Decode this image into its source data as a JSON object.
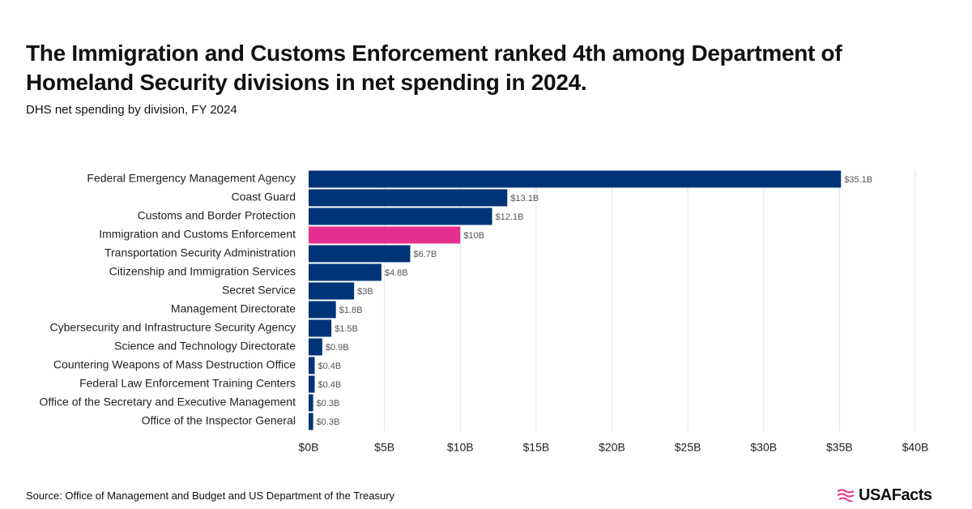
{
  "chart_data": {
    "type": "barh",
    "title": "The Immigration and Customs Enforcement ranked 4th among Department of Homeland Security divisions in net spending in 2024.",
    "subtitle": "DHS net spending by division, FY 2024",
    "source": "Source: Office of Management and Budget and US Department of the Treasury",
    "brand": "USAFacts",
    "categories": [
      "Federal Emergency Management Agency",
      "Coast Guard",
      "Customs and Border Protection",
      "Immigration and Customs Enforcement",
      "Transportation Security Administration",
      "Citizenship and Immigration Services",
      "Secret Service",
      "Management Directorate",
      "Cybersecurity and Infrastructure Security Agency",
      "Science and Technology Directorate",
      "Countering Weapons of Mass Destruction Office",
      "Federal Law Enforcement Training Centers",
      "Office of the Secretary and Executive Management",
      "Office of the Inspector General"
    ],
    "values": [
      35.1,
      13.1,
      12.1,
      10,
      6.7,
      4.8,
      3,
      1.8,
      1.5,
      0.9,
      0.4,
      0.4,
      0.3,
      0.3
    ],
    "value_labels": [
      "$35.1B",
      "$13.1B",
      "$12.1B",
      "$10B",
      "$6.7B",
      "$4.8B",
      "$3B",
      "$1.8B",
      "$1.5B",
      "$0.9B",
      "$0.4B",
      "$0.4B",
      "$0.3B",
      "$0.3B"
    ],
    "colors": [
      "#003478",
      "#003478",
      "#003478",
      "#e6308f",
      "#003478",
      "#003478",
      "#003478",
      "#003478",
      "#003478",
      "#003478",
      "#003478",
      "#003478",
      "#003478",
      "#003478"
    ],
    "xlim": [
      0,
      40
    ],
    "xticks": [
      {
        "value": 0,
        "label": "$0B"
      },
      {
        "value": 5,
        "label": "$5B"
      },
      {
        "value": 10,
        "label": "$10B"
      },
      {
        "value": 15,
        "label": "$15B"
      },
      {
        "value": 20,
        "label": "$20B"
      },
      {
        "value": 25,
        "label": "$25B"
      },
      {
        "value": 30,
        "label": "$30B"
      },
      {
        "value": 35,
        "label": "$35B"
      },
      {
        "value": 40,
        "label": "$40B"
      }
    ],
    "grid": true
  }
}
